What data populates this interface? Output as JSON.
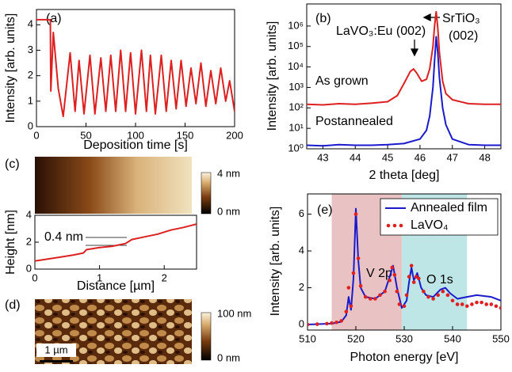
{
  "chart_data": [
    {
      "type": "line",
      "label": "(a)",
      "xlabel": "Deposition time [s]",
      "ylabel": "Intensity [arb. units]",
      "xlim": [
        0,
        200
      ],
      "ylim": [
        0,
        4.6
      ],
      "xticks": [
        0,
        50,
        100,
        150,
        200
      ],
      "yticks": [
        0,
        1,
        2,
        3,
        4
      ],
      "series": [
        {
          "color": "#dd2020",
          "x": [
            0,
            14,
            14.5,
            17,
            22,
            27,
            34,
            39,
            43,
            48,
            54,
            59,
            65,
            70,
            75,
            80,
            85,
            90,
            95,
            100,
            106,
            111,
            115,
            120,
            126,
            131,
            136,
            141,
            146,
            151,
            156,
            161,
            166,
            171,
            176,
            181,
            186,
            191,
            195,
            200
          ],
          "values": [
            4.2,
            4.2,
            1.4,
            3.7,
            1.5,
            0.4,
            2.9,
            0.6,
            2.6,
            0.5,
            2.8,
            0.5,
            2.7,
            0.6,
            2.8,
            0.6,
            3.0,
            0.6,
            2.9,
            0.5,
            3.0,
            0.6,
            2.8,
            0.5,
            2.8,
            0.6,
            2.6,
            0.7,
            2.6,
            0.8,
            2.3,
            0.9,
            2.5,
            0.8,
            2.2,
            0.9,
            2.3,
            1.0,
            1.8,
            0.6
          ]
        }
      ]
    },
    {
      "type": "line",
      "label": "(b)",
      "xlabel": "2 theta [deg]",
      "ylabel": "Intensity [arb. units]",
      "log_y": true,
      "xlim": [
        42.5,
        48.5
      ],
      "ylim": [
        1,
        12000000
      ],
      "xticks": [
        43,
        44,
        45,
        46,
        47,
        48
      ],
      "yticks": [
        {
          "value": 1,
          "label": "10⁰"
        },
        {
          "value": 10,
          "label": "10¹"
        },
        {
          "value": 100,
          "label": "10²"
        },
        {
          "value": 1000,
          "label": "10³"
        },
        {
          "value": 10000,
          "label": "10⁴"
        },
        {
          "value": 100000,
          "label": "10⁵"
        },
        {
          "value": 1000000,
          "label": "10⁶"
        }
      ],
      "annotations": [
        "LaVO₃:Eu (002)",
        "SrTiO₃",
        "(002)",
        "As grown",
        "Postannealed"
      ],
      "series": [
        {
          "color": "#dd2020",
          "x": [
            42.5,
            43,
            43.5,
            44,
            44.5,
            45,
            45.3,
            45.5,
            45.7,
            45.8,
            45.9,
            46.05,
            46.2,
            46.3,
            46.4,
            46.45,
            46.5,
            46.55,
            46.6,
            46.7,
            46.8,
            47,
            47.5,
            48,
            48.5
          ],
          "values": [
            150,
            140,
            160,
            150,
            170,
            200,
            400,
            1500,
            6000,
            8000,
            5000,
            2000,
            2500,
            8000,
            100000,
            1000000,
            5000000,
            800000,
            50000,
            2000,
            500,
            250,
            160,
            150,
            150
          ]
        },
        {
          "color": "#1a1acc",
          "x": [
            42.5,
            43,
            43.5,
            44,
            44.5,
            45,
            45.5,
            46,
            46.2,
            46.3,
            46.4,
            46.45,
            46.5,
            46.55,
            46.6,
            46.7,
            46.8,
            47,
            47.5,
            48,
            48.5
          ],
          "values": [
            1.5,
            1.4,
            1.6,
            1.5,
            1.5,
            1.6,
            1.8,
            3,
            8,
            40,
            1000,
            20000,
            300000,
            50000,
            3000,
            100,
            15,
            3,
            1.6,
            1.5,
            1.5
          ]
        }
      ]
    },
    {
      "type": "image",
      "label": "(c)",
      "colorbar": {
        "max_label": "4 nm",
        "min_label": "0 nm"
      }
    },
    {
      "type": "line",
      "xlabel": "Distance [µm]",
      "ylabel": "Height [nm]",
      "annotations": [
        "0.4 nm"
      ],
      "xlim": [
        0,
        2.5
      ],
      "ylim": [
        0,
        4
      ],
      "xticks": [
        0,
        1,
        2
      ],
      "yticks": [
        0,
        2,
        4
      ],
      "series": [
        {
          "color": "#dd2020",
          "x": [
            0,
            0.2,
            0.4,
            0.6,
            0.75,
            0.8,
            1.0,
            1.2,
            1.4,
            1.5,
            1.7,
            1.9,
            2.1,
            2.3,
            2.5
          ],
          "values": [
            0.6,
            0.75,
            0.9,
            1.05,
            1.2,
            1.45,
            1.6,
            1.7,
            1.9,
            2.2,
            2.4,
            2.6,
            2.9,
            3.1,
            3.35
          ]
        }
      ]
    },
    {
      "type": "image",
      "label": "(d)",
      "colorbar": {
        "max_label": "100 nm",
        "min_label": "0 nm"
      },
      "scale_bar": "1 µm"
    },
    {
      "type": "line",
      "label": "(e)",
      "xlabel": "Photon energy [eV]",
      "ylabel": "Intensity [arb. units]",
      "xlim": [
        510,
        550
      ],
      "ylim": [
        -0.3,
        7.1
      ],
      "xticks": [
        510,
        520,
        530,
        540,
        550
      ],
      "yticks": [
        0,
        2,
        4,
        6
      ],
      "bands": [
        {
          "from": 515,
          "to": 529.5,
          "color": "#e9c3c3",
          "label": "V 2p"
        },
        {
          "from": 529.5,
          "to": 543,
          "color": "#bfe6e6",
          "label": "O 1s"
        }
      ],
      "series": [
        {
          "name": "Annealed film",
          "color": "#1a1acc",
          "x": [
            510,
            515,
            517,
            518,
            518.5,
            519,
            519.5,
            520,
            520.5,
            521,
            522,
            524,
            526,
            527,
            527.7,
            528.5,
            529.5,
            530.5,
            531,
            531.5,
            532,
            532.7,
            533.5,
            534.5,
            536,
            537.5,
            538.5,
            539.5,
            541,
            543,
            545,
            548,
            550
          ],
          "values": [
            0,
            0.05,
            0.15,
            0.5,
            1.5,
            0.8,
            2.5,
            6.3,
            3.5,
            2.0,
            1.5,
            1.4,
            1.8,
            2.6,
            3.2,
            2.0,
            0.9,
            1.3,
            2.3,
            3.1,
            2.4,
            2.8,
            2.0,
            1.6,
            1.5,
            1.9,
            2.0,
            1.7,
            1.4,
            1.5,
            1.6,
            1.5,
            1.3
          ]
        },
        {
          "name": "LaVO₄",
          "color": "#e02020",
          "mode": "markers",
          "x": [
            510,
            512,
            514,
            515,
            516,
            517,
            518,
            518.5,
            519,
            519.5,
            520,
            520.5,
            521,
            522,
            523,
            524,
            525,
            526,
            527,
            527.5,
            528,
            528.5,
            529,
            530,
            530.5,
            531,
            531.5,
            532,
            532.5,
            533,
            534,
            535,
            536,
            537,
            538,
            539,
            540,
            541,
            542,
            543,
            544,
            545,
            546,
            547,
            548,
            549,
            550
          ],
          "values": [
            0,
            0.02,
            0.05,
            0.08,
            0.12,
            0.2,
            0.7,
            2.0,
            1.0,
            2.8,
            6.0,
            3.6,
            2.1,
            1.5,
            1.4,
            1.4,
            1.6,
            1.8,
            2.4,
            3.1,
            2.7,
            1.8,
            1.1,
            1.0,
            1.6,
            2.6,
            3.2,
            2.3,
            2.6,
            2.5,
            1.8,
            1.5,
            1.4,
            1.6,
            1.8,
            1.6,
            1.3,
            1.1,
            1.1,
            1.0,
            1.1,
            1.2,
            1.2,
            1.1,
            1.1,
            1.0,
            0.9
          ]
        }
      ]
    }
  ]
}
